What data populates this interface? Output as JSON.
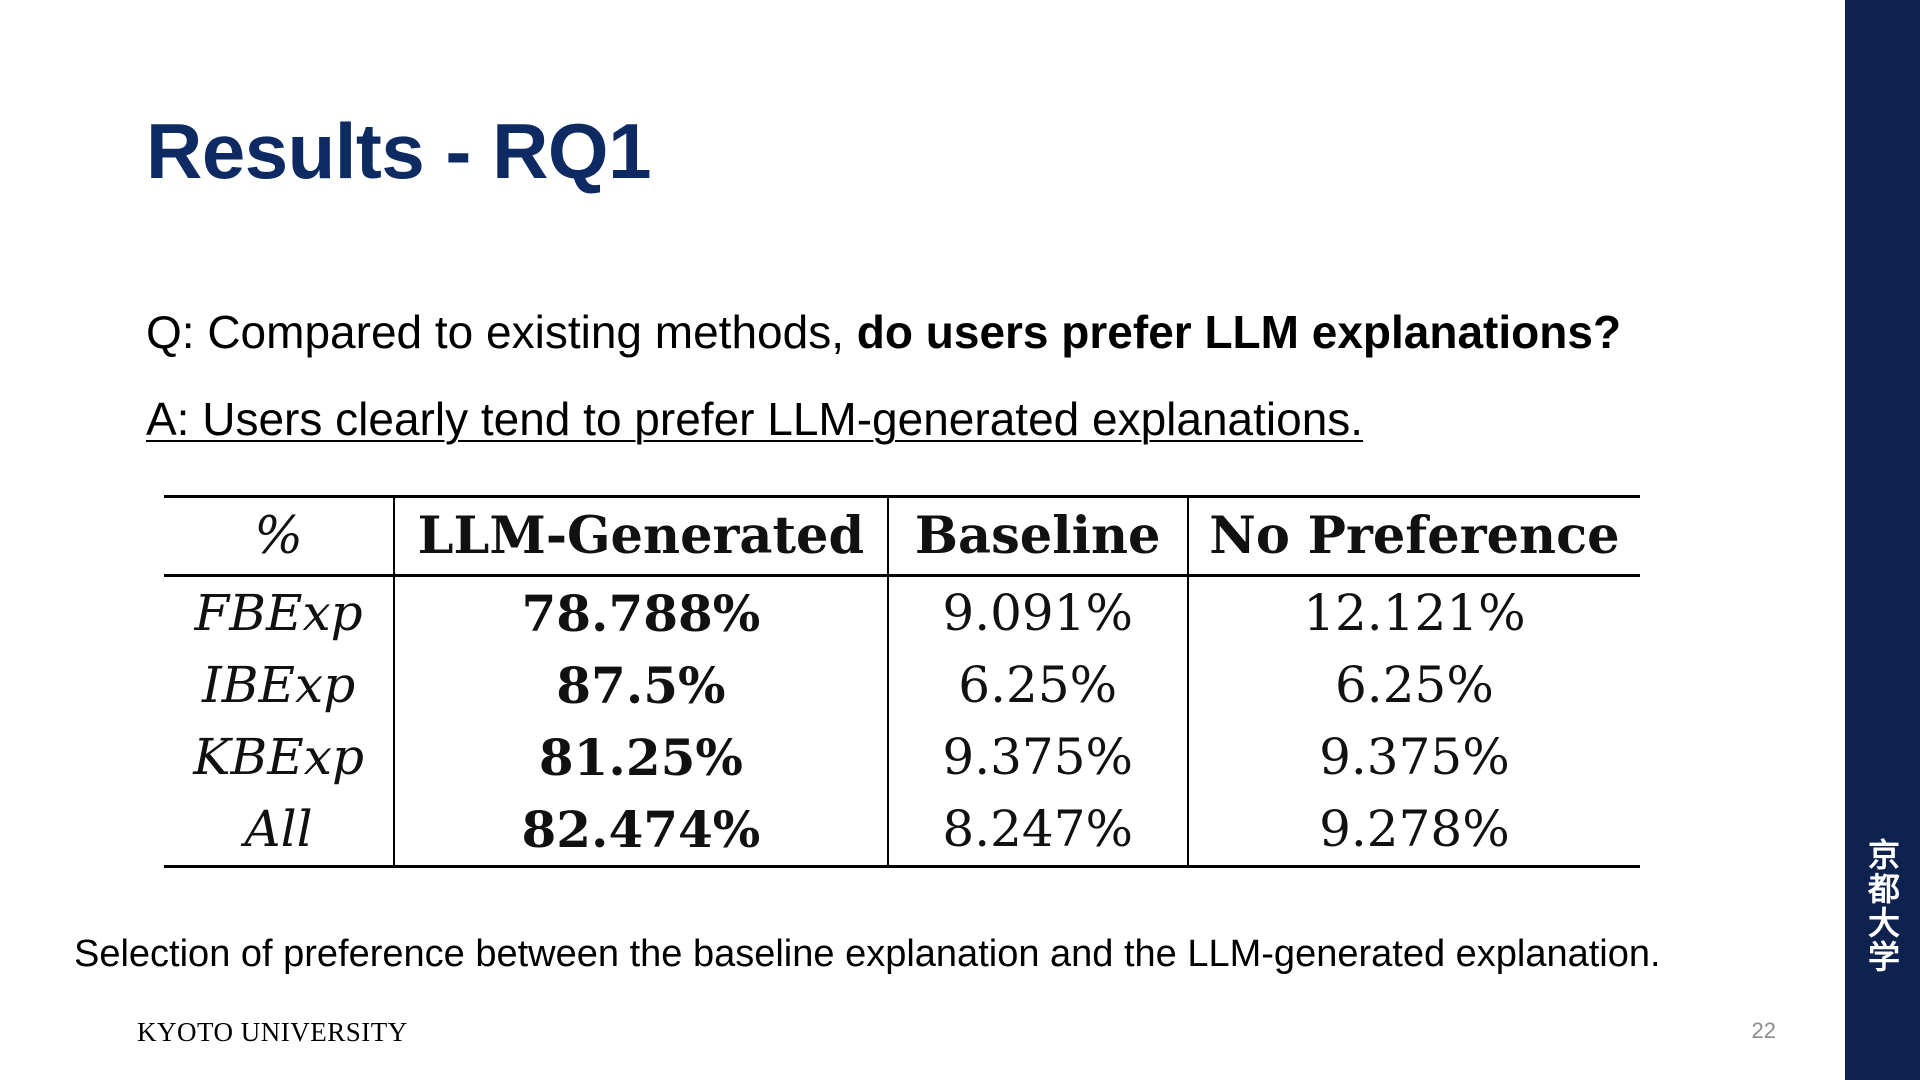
{
  "slide": {
    "title": "Results - RQ1",
    "question_prefix": "Q: Compared to existing methods, ",
    "question_emphasis": "do users prefer LLM explanations?",
    "answer": "A: Users clearly tend to prefer LLM-generated explanations.",
    "caption": "Selection of preference between the baseline explanation and the LLM-generated explanation.",
    "footer_logo": "KYOTO UNIVERSITY",
    "page_number": "22",
    "side_kanji": [
      "京",
      "都",
      "大",
      "学"
    ]
  },
  "table": {
    "headers": [
      "%",
      "LLM-Generated",
      "Baseline",
      "No Preference"
    ],
    "rows": [
      {
        "label": "FBExp",
        "llm": "78.788%",
        "baseline": "9.091%",
        "no_pref": "12.121%"
      },
      {
        "label": "IBExp",
        "llm": "87.5%",
        "baseline": "6.25%",
        "no_pref": "6.25%"
      },
      {
        "label": "KBExp",
        "llm": "81.25%",
        "baseline": "9.375%",
        "no_pref": "9.375%"
      },
      {
        "label": "All",
        "llm": "82.474%",
        "baseline": "8.247%",
        "no_pref": "9.278%"
      }
    ]
  },
  "colors": {
    "title": "#0e2a63",
    "side_bar": "#0e2250",
    "page_number": "#8c8c8c"
  }
}
